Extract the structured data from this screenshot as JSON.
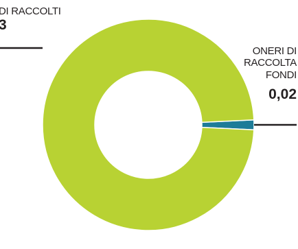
{
  "chart_data": {
    "type": "pie",
    "donut": true,
    "title": "",
    "slices": [
      {
        "label_visible": "DI RACCOLTI",
        "value_visible": "3",
        "color": "#b8d233"
      },
      {
        "label": "ONERI DI RACCOLTA FONDI",
        "label_lines": [
          "ONERI DI",
          "RACCOLTA",
          "FONDI"
        ],
        "value": 0.02,
        "value_label": "0,02",
        "color": "#1d7c98"
      }
    ],
    "share_of_total": [
      0.985,
      0.015
    ],
    "legend": "none",
    "leader_line_color": "#231f20"
  }
}
